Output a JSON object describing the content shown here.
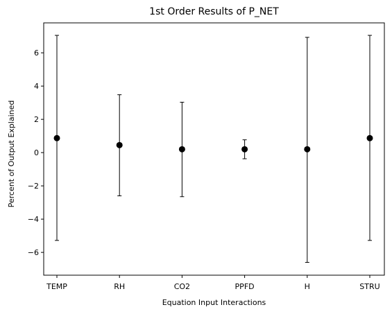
{
  "chart_data": {
    "type": "scatter",
    "title": "1st Order Results of P_NET",
    "xlabel": "Equation Input Interactions",
    "ylabel": "Percent of Output Explained",
    "categories": [
      "TEMP",
      "RH",
      "CO2",
      "PPFD",
      "H",
      "STRU"
    ],
    "values": [
      0.87,
      0.45,
      0.2,
      0.2,
      0.2,
      0.87
    ],
    "error_low": [
      -5.28,
      -2.6,
      -2.65,
      -0.37,
      -6.6,
      -5.28
    ],
    "error_high": [
      7.05,
      3.48,
      3.03,
      0.77,
      6.93,
      7.05
    ],
    "ylim": [
      -7.37,
      7.8
    ],
    "yticks": [
      -6,
      -4,
      -2,
      0,
      2,
      4,
      6
    ],
    "ytick_labels": [
      "−6",
      "−4",
      "−2",
      "0",
      "2",
      "4",
      "6"
    ],
    "grid": false,
    "marker_color": "#000000"
  }
}
